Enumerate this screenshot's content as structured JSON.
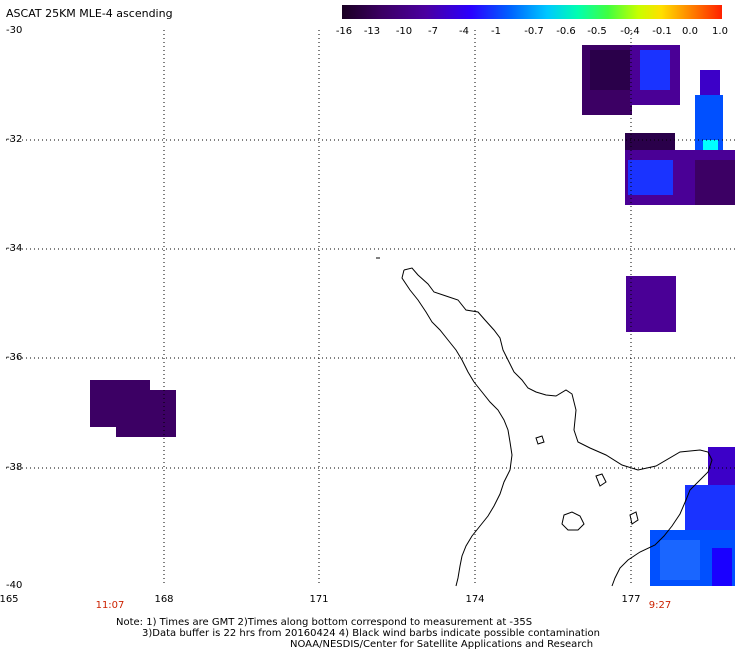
{
  "title": "ASCAT 25KM MLE-4 ascending",
  "colorbar": {
    "ticks": [
      "-16",
      "-13",
      "-10",
      "-7",
      "-4",
      "-1",
      "-0.7",
      "-0.6",
      "-0.5",
      "-0.4",
      "-0.1",
      "0.0",
      "1.0"
    ]
  },
  "axes": {
    "lat_labels": [
      "-30",
      "-32",
      "-34",
      "-36",
      "-38",
      "-40"
    ],
    "lon_labels": [
      "165",
      "168",
      "171",
      "174",
      "177"
    ]
  },
  "pass_times": [
    "11:07",
    "9:27"
  ],
  "notes": {
    "line1": "Note: 1) Times are GMT 2)Times along bottom correspond to measurement at -35S",
    "line2": "3)Data buffer is 22 hrs from 20160424 4) Black wind barbs indicate possible contamination",
    "line3": "NOAA/NESDIS/Center for Satellite Applications and Research"
  },
  "colors": {
    "deep_purple": "#3c0064",
    "indigo": "#4a0096",
    "blue": "#1a33ff",
    "bright_blue": "#0050ff",
    "cyan": "#00ffff",
    "time_red": "#cc2200"
  }
}
